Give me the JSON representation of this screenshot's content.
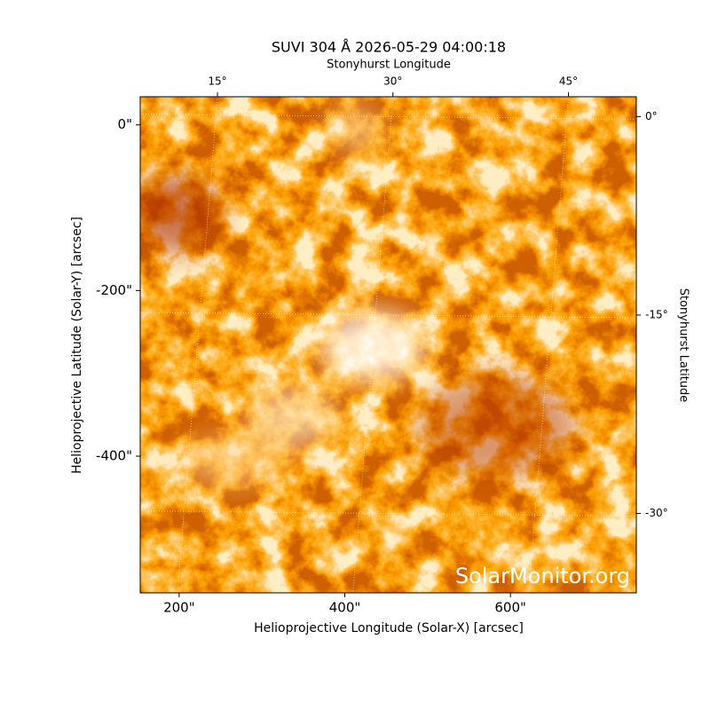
{
  "chart_data": {
    "type": "image",
    "title": "SUVI 304 Å 2026-05-29 04:00:18",
    "xlabel": "Helioprojective Longitude (Solar-X) [arcsec]",
    "ylabel": "Helioprojective Latitude (Solar-Y) [arcsec]",
    "x2label": "Stonyhurst Longitude",
    "y2label": "Stonyhurst Latitude",
    "watermark": "SolarMonitor.org",
    "xlim": [
      153,
      752
    ],
    "ylim": [
      -565,
      34
    ],
    "xticks": [
      {
        "value": 200,
        "label": "200\""
      },
      {
        "value": 400,
        "label": "400\""
      },
      {
        "value": 600,
        "label": "600\""
      }
    ],
    "yticks": [
      {
        "value": 0,
        "label": "0\""
      },
      {
        "value": -200,
        "label": "-200\""
      },
      {
        "value": -400,
        "label": "-400\""
      }
    ],
    "x2lim": [
      8.4,
      50.8
    ],
    "x2ticks": [
      {
        "value": 15,
        "label": "15°"
      },
      {
        "value": 30,
        "label": "30°"
      },
      {
        "value": 45,
        "label": "45°"
      }
    ],
    "y2lim": [
      1.5,
      -36
    ],
    "y2ticks": [
      {
        "value": 0,
        "label": "0°"
      },
      {
        "value": -15,
        "label": "-15°"
      },
      {
        "value": -30,
        "label": "-30°"
      }
    ],
    "grid": true
  }
}
